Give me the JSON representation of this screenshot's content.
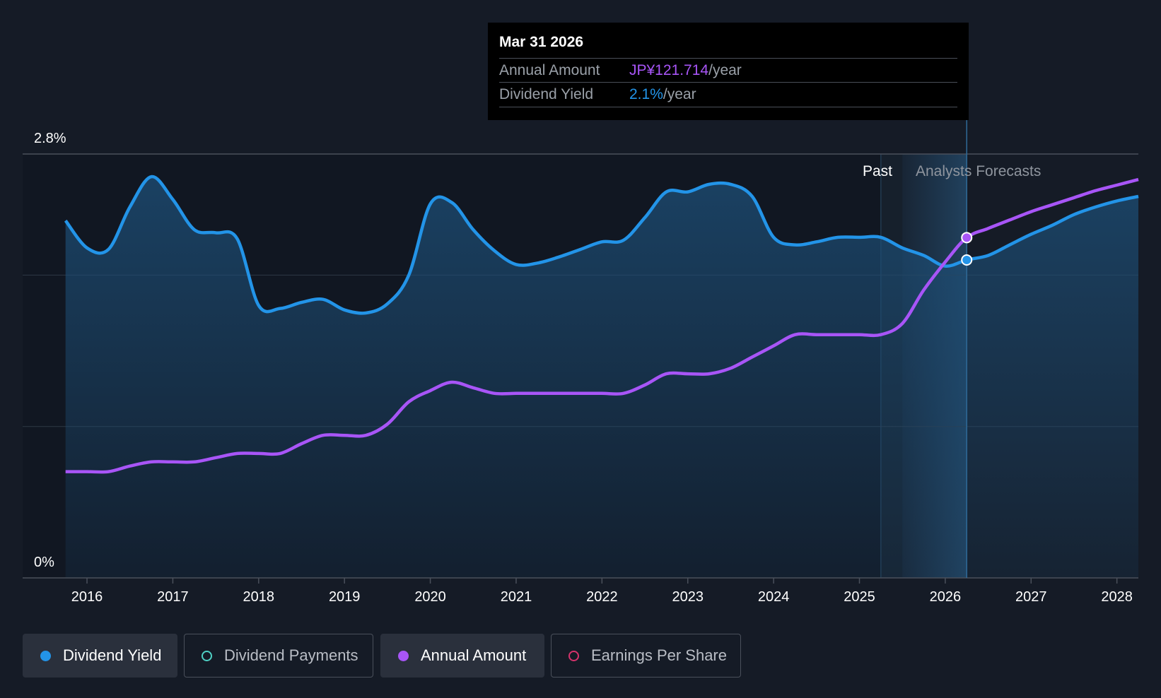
{
  "tooltip": {
    "date": "Mar 31 2026",
    "rows": [
      {
        "label": "Annual Amount",
        "value": "JP¥121.714",
        "unit": "/year",
        "color": "#a855f7"
      },
      {
        "label": "Dividend Yield",
        "value": "2.1%",
        "unit": "/year",
        "color": "#2394e8"
      }
    ]
  },
  "regions": {
    "past_label": "Past",
    "forecast_label": "Analysts Forecasts"
  },
  "legend": [
    {
      "label": "Dividend Yield",
      "color": "#2394e8",
      "active": true,
      "filled": true
    },
    {
      "label": "Dividend Payments",
      "color": "#4fd1c5",
      "active": false,
      "filled": false
    },
    {
      "label": "Annual Amount",
      "color": "#a855f7",
      "active": true,
      "filled": true
    },
    {
      "label": "Earnings Per Share",
      "color": "#d6336c",
      "active": false,
      "filled": false
    }
  ],
  "chart_data": {
    "type": "line",
    "x_range": [
      2015.25,
      2028.25
    ],
    "y_range_pct": [
      0,
      2.8
    ],
    "y_ticks": [
      {
        "value": 0,
        "label": "0%"
      },
      {
        "value": 2.8,
        "label": "2.8%"
      }
    ],
    "x_ticks": [
      {
        "value": 2016,
        "label": "2016"
      },
      {
        "value": 2017,
        "label": "2017"
      },
      {
        "value": 2018,
        "label": "2018"
      },
      {
        "value": 2019,
        "label": "2019"
      },
      {
        "value": 2020,
        "label": "2020"
      },
      {
        "value": 2021,
        "label": "2021"
      },
      {
        "value": 2022,
        "label": "2022"
      },
      {
        "value": 2023,
        "label": "2023"
      },
      {
        "value": 2024,
        "label": "2024"
      },
      {
        "value": 2025,
        "label": "2025"
      },
      {
        "value": 2026,
        "label": "2026"
      },
      {
        "value": 2027,
        "label": "2027"
      },
      {
        "value": 2028,
        "label": "2028"
      }
    ],
    "gridlines_pct": [
      2.0,
      1.0
    ],
    "past_forecast_boundary": 2025.25,
    "forecast_shade_start": 2025.5,
    "cursor_x": 2026.25,
    "series": [
      {
        "name": "Dividend Yield",
        "unit": "%",
        "color": "#2394e8",
        "filled_area": true,
        "points": [
          [
            2015.75,
            2.36
          ],
          [
            2016.0,
            2.18
          ],
          [
            2016.25,
            2.17
          ],
          [
            2016.5,
            2.45
          ],
          [
            2016.75,
            2.65
          ],
          [
            2017.0,
            2.5
          ],
          [
            2017.25,
            2.3
          ],
          [
            2017.5,
            2.28
          ],
          [
            2017.75,
            2.24
          ],
          [
            2018.0,
            1.8
          ],
          [
            2018.25,
            1.78
          ],
          [
            2018.5,
            1.82
          ],
          [
            2018.75,
            1.84
          ],
          [
            2019.0,
            1.77
          ],
          [
            2019.25,
            1.75
          ],
          [
            2019.5,
            1.81
          ],
          [
            2019.75,
            2.0
          ],
          [
            2020.0,
            2.47
          ],
          [
            2020.25,
            2.48
          ],
          [
            2020.5,
            2.3
          ],
          [
            2020.75,
            2.16
          ],
          [
            2021.0,
            2.07
          ],
          [
            2021.25,
            2.08
          ],
          [
            2021.5,
            2.12
          ],
          [
            2021.75,
            2.17
          ],
          [
            2022.0,
            2.22
          ],
          [
            2022.25,
            2.23
          ],
          [
            2022.5,
            2.38
          ],
          [
            2022.75,
            2.55
          ],
          [
            2023.0,
            2.55
          ],
          [
            2023.25,
            2.6
          ],
          [
            2023.5,
            2.6
          ],
          [
            2023.75,
            2.52
          ],
          [
            2024.0,
            2.25
          ],
          [
            2024.25,
            2.2
          ],
          [
            2024.5,
            2.22
          ],
          [
            2024.75,
            2.25
          ],
          [
            2025.0,
            2.25
          ],
          [
            2025.25,
            2.25
          ],
          [
            2025.5,
            2.18
          ],
          [
            2025.75,
            2.13
          ],
          [
            2026.0,
            2.06
          ],
          [
            2026.25,
            2.1
          ],
          [
            2026.5,
            2.13
          ],
          [
            2026.75,
            2.2
          ],
          [
            2027.0,
            2.27
          ],
          [
            2027.25,
            2.33
          ],
          [
            2027.5,
            2.4
          ],
          [
            2027.75,
            2.45
          ],
          [
            2028.0,
            2.49
          ],
          [
            2028.25,
            2.52
          ]
        ]
      },
      {
        "name": "Annual Amount",
        "unit": "JP¥",
        "color": "#a855f7",
        "filled_area": false,
        "y_scale_max_value": 141,
        "points": [
          [
            2015.75,
            38
          ],
          [
            2016.0,
            38
          ],
          [
            2016.25,
            38
          ],
          [
            2016.5,
            40
          ],
          [
            2016.75,
            41.5
          ],
          [
            2017.0,
            41.5
          ],
          [
            2017.25,
            41.5
          ],
          [
            2017.5,
            43
          ],
          [
            2017.75,
            44.5
          ],
          [
            2018.0,
            44.5
          ],
          [
            2018.25,
            44.5
          ],
          [
            2018.5,
            48
          ],
          [
            2018.75,
            51
          ],
          [
            2019.0,
            51
          ],
          [
            2019.25,
            51
          ],
          [
            2019.5,
            55
          ],
          [
            2019.75,
            63
          ],
          [
            2020.0,
            67
          ],
          [
            2020.25,
            70
          ],
          [
            2020.5,
            68
          ],
          [
            2020.75,
            66
          ],
          [
            2021.0,
            66
          ],
          [
            2021.25,
            66
          ],
          [
            2021.5,
            66
          ],
          [
            2021.75,
            66
          ],
          [
            2022.0,
            66
          ],
          [
            2022.25,
            66
          ],
          [
            2022.5,
            69
          ],
          [
            2022.75,
            73
          ],
          [
            2023.0,
            73
          ],
          [
            2023.25,
            73
          ],
          [
            2023.5,
            75
          ],
          [
            2023.75,
            79
          ],
          [
            2024.0,
            83
          ],
          [
            2024.25,
            87
          ],
          [
            2024.5,
            87
          ],
          [
            2024.75,
            87
          ],
          [
            2025.0,
            87
          ],
          [
            2025.25,
            87
          ],
          [
            2025.5,
            91
          ],
          [
            2025.75,
            103
          ],
          [
            2026.0,
            113
          ],
          [
            2026.25,
            121.714
          ],
          [
            2026.5,
            125
          ],
          [
            2026.75,
            128
          ],
          [
            2027.0,
            131
          ],
          [
            2027.25,
            133.5
          ],
          [
            2027.5,
            136
          ],
          [
            2027.75,
            138.5
          ],
          [
            2028.0,
            140.5
          ],
          [
            2028.25,
            142.5
          ]
        ]
      }
    ]
  }
}
